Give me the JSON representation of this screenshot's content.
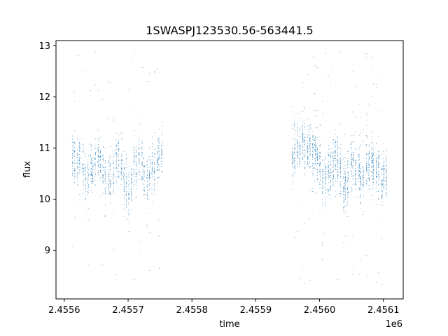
{
  "chart_data": {
    "type": "scatter",
    "title": "1SWASPJ123530.56-563441.5",
    "xlabel": "time",
    "ylabel": "flux",
    "x_offset_label": "1e6",
    "xlim": [
      2455587,
      2456131
    ],
    "ylim": [
      8.05,
      13.1
    ],
    "x_ticks": [
      2455600,
      2455700,
      2455800,
      2455900,
      2456000,
      2456100
    ],
    "x_tick_labels": [
      "2.4556",
      "2.4557",
      "2.4558",
      "2.4559",
      "2.4560",
      "2.4561"
    ],
    "y_ticks": [
      9,
      10,
      11,
      12,
      13
    ],
    "y_tick_labels": [
      "9",
      "10",
      "11",
      "12",
      "13"
    ],
    "grid": false,
    "marker_color": "#1f77b4",
    "series": [
      {
        "segments": [
          {
            "x_start": 2455612,
            "x_end": 2455756,
            "nights": 36,
            "pts_per_night": 34,
            "center": 10.6,
            "spread": 0.22,
            "wave_amp": 0.15,
            "wave_period": 32,
            "dip_at": 2455700,
            "dip_depth": 0.7,
            "dip_width": 6
          },
          {
            "x_start": 2455956,
            "x_end": 2456108,
            "nights": 38,
            "pts_per_night": 44,
            "center": 10.55,
            "spread": 0.24,
            "wave_amp": 0.18,
            "wave_period": 30,
            "rise_at": 2455975,
            "rise_height": 0.6,
            "rise_width": 15
          }
        ],
        "outlier_fraction": 0.06,
        "outlier_range": [
          8.3,
          12.9
        ]
      }
    ]
  }
}
